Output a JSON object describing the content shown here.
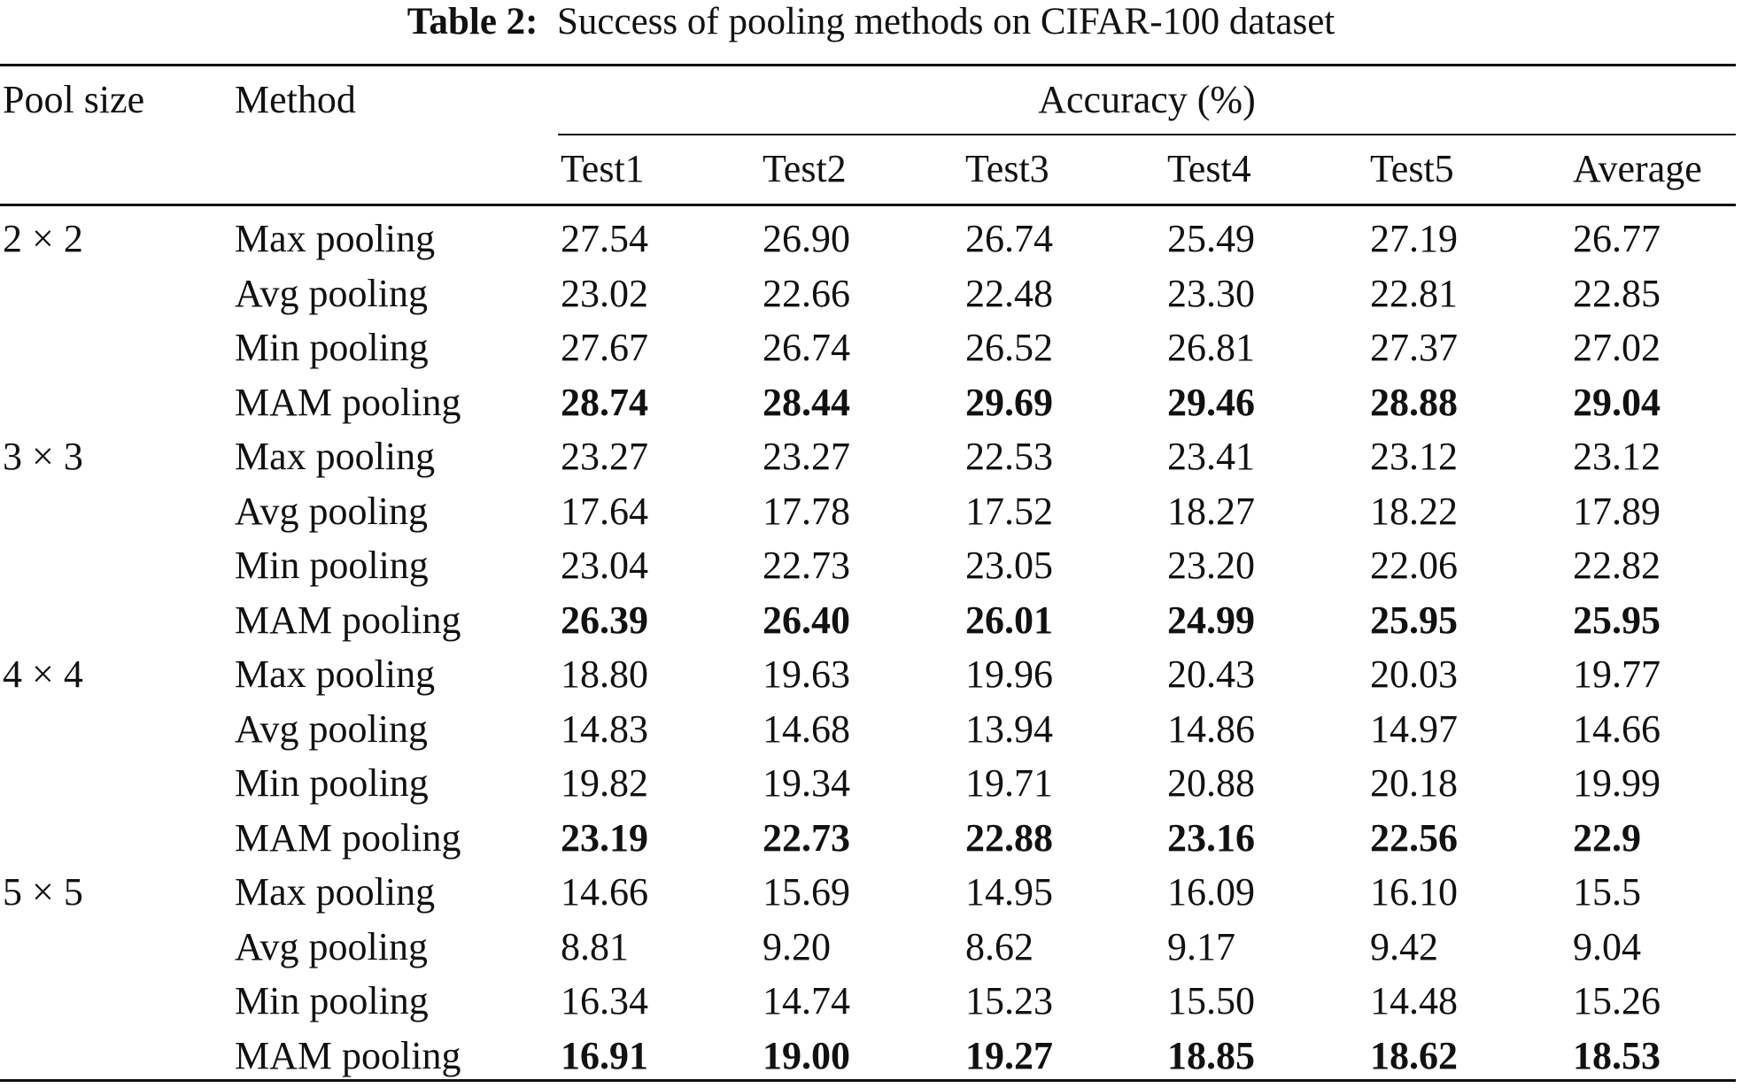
{
  "caption": {
    "label": "Table 2:",
    "text": "Success of pooling methods on CIFAR-100 dataset"
  },
  "header": {
    "pool_size": "Pool size",
    "method": "Method",
    "accuracy": "Accuracy (%)",
    "columns": [
      "Test1",
      "Test2",
      "Test3",
      "Test4",
      "Test5",
      "Average"
    ]
  },
  "groups": [
    {
      "pool_size": "2 × 2",
      "rows": [
        {
          "method": "Max pooling",
          "values": [
            "27.54",
            "26.90",
            "26.74",
            "25.49",
            "27.19",
            "26.77"
          ],
          "bold": false
        },
        {
          "method": "Avg pooling",
          "values": [
            "23.02",
            "22.66",
            "22.48",
            "23.30",
            "22.81",
            "22.85"
          ],
          "bold": false
        },
        {
          "method": "Min pooling",
          "values": [
            "27.67",
            "26.74",
            "26.52",
            "26.81",
            "27.37",
            "27.02"
          ],
          "bold": false
        },
        {
          "method": "MAM pooling",
          "values": [
            "28.74",
            "28.44",
            "29.69",
            "29.46",
            "28.88",
            "29.04"
          ],
          "bold": true
        }
      ]
    },
    {
      "pool_size": "3 × 3",
      "rows": [
        {
          "method": "Max pooling",
          "values": [
            "23.27",
            "23.27",
            "22.53",
            "23.41",
            "23.12",
            "23.12"
          ],
          "bold": false
        },
        {
          "method": "Avg pooling",
          "values": [
            "17.64",
            "17.78",
            "17.52",
            "18.27",
            "18.22",
            "17.89"
          ],
          "bold": false
        },
        {
          "method": "Min pooling",
          "values": [
            "23.04",
            "22.73",
            "23.05",
            "23.20",
            "22.06",
            "22.82"
          ],
          "bold": false
        },
        {
          "method": "MAM pooling",
          "values": [
            "26.39",
            "26.40",
            "26.01",
            "24.99",
            "25.95",
            "25.95"
          ],
          "bold": true
        }
      ]
    },
    {
      "pool_size": "4 × 4",
      "rows": [
        {
          "method": "Max pooling",
          "values": [
            "18.80",
            "19.63",
            "19.96",
            "20.43",
            "20.03",
            "19.77"
          ],
          "bold": false
        },
        {
          "method": "Avg pooling",
          "values": [
            "14.83",
            "14.68",
            "13.94",
            "14.86",
            "14.97",
            "14.66"
          ],
          "bold": false
        },
        {
          "method": "Min pooling",
          "values": [
            "19.82",
            "19.34",
            "19.71",
            "20.88",
            "20.18",
            "19.99"
          ],
          "bold": false
        },
        {
          "method": "MAM pooling",
          "values": [
            "23.19",
            "22.73",
            "22.88",
            "23.16",
            "22.56",
            "22.9"
          ],
          "bold": true
        }
      ]
    },
    {
      "pool_size": "5 × 5",
      "rows": [
        {
          "method": "Max pooling",
          "values": [
            "14.66",
            "15.69",
            "14.95",
            "16.09",
            "16.10",
            "15.5"
          ],
          "bold": false
        },
        {
          "method": "Avg pooling",
          "values": [
            "8.81",
            "9.20",
            "8.62",
            "9.17",
            "9.42",
            "9.04"
          ],
          "bold": false
        },
        {
          "method": "Min pooling",
          "values": [
            "16.34",
            "14.74",
            "15.23",
            "15.50",
            "14.48",
            "15.26"
          ],
          "bold": false
        },
        {
          "method": "MAM pooling",
          "values": [
            "16.91",
            "19.00",
            "19.27",
            "18.85",
            "18.62",
            "18.53"
          ],
          "bold": true
        }
      ]
    }
  ]
}
